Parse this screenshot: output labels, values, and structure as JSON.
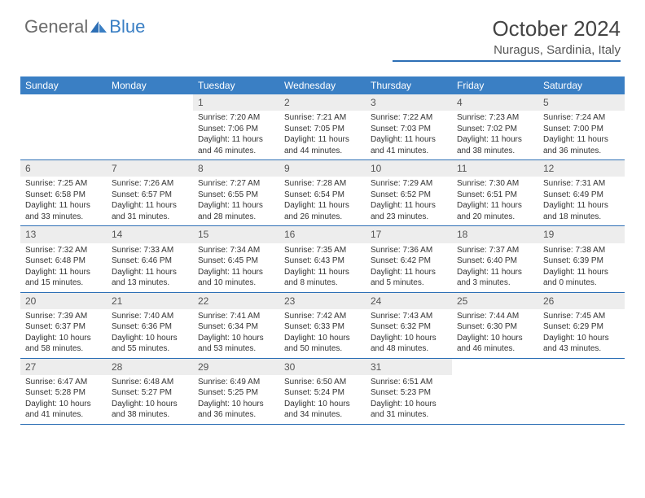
{
  "logo": {
    "general": "General",
    "blue": "Blue"
  },
  "title": "October 2024",
  "location": "Nuragus, Sardinia, Italy",
  "colors": {
    "header_bar": "#3a7fc4",
    "week_divider": "#2d6fb5",
    "daynum_bg": "#ededed",
    "logo_gray": "#6b6b6b",
    "logo_blue": "#3a7fc4"
  },
  "weekdays": [
    "Sunday",
    "Monday",
    "Tuesday",
    "Wednesday",
    "Thursday",
    "Friday",
    "Saturday"
  ],
  "weeks": [
    [
      null,
      null,
      {
        "n": "1",
        "sr": "7:20 AM",
        "ss": "7:06 PM",
        "dl": "11 hours and 46 minutes."
      },
      {
        "n": "2",
        "sr": "7:21 AM",
        "ss": "7:05 PM",
        "dl": "11 hours and 44 minutes."
      },
      {
        "n": "3",
        "sr": "7:22 AM",
        "ss": "7:03 PM",
        "dl": "11 hours and 41 minutes."
      },
      {
        "n": "4",
        "sr": "7:23 AM",
        "ss": "7:02 PM",
        "dl": "11 hours and 38 minutes."
      },
      {
        "n": "5",
        "sr": "7:24 AM",
        "ss": "7:00 PM",
        "dl": "11 hours and 36 minutes."
      }
    ],
    [
      {
        "n": "6",
        "sr": "7:25 AM",
        "ss": "6:58 PM",
        "dl": "11 hours and 33 minutes."
      },
      {
        "n": "7",
        "sr": "7:26 AM",
        "ss": "6:57 PM",
        "dl": "11 hours and 31 minutes."
      },
      {
        "n": "8",
        "sr": "7:27 AM",
        "ss": "6:55 PM",
        "dl": "11 hours and 28 minutes."
      },
      {
        "n": "9",
        "sr": "7:28 AM",
        "ss": "6:54 PM",
        "dl": "11 hours and 26 minutes."
      },
      {
        "n": "10",
        "sr": "7:29 AM",
        "ss": "6:52 PM",
        "dl": "11 hours and 23 minutes."
      },
      {
        "n": "11",
        "sr": "7:30 AM",
        "ss": "6:51 PM",
        "dl": "11 hours and 20 minutes."
      },
      {
        "n": "12",
        "sr": "7:31 AM",
        "ss": "6:49 PM",
        "dl": "11 hours and 18 minutes."
      }
    ],
    [
      {
        "n": "13",
        "sr": "7:32 AM",
        "ss": "6:48 PM",
        "dl": "11 hours and 15 minutes."
      },
      {
        "n": "14",
        "sr": "7:33 AM",
        "ss": "6:46 PM",
        "dl": "11 hours and 13 minutes."
      },
      {
        "n": "15",
        "sr": "7:34 AM",
        "ss": "6:45 PM",
        "dl": "11 hours and 10 minutes."
      },
      {
        "n": "16",
        "sr": "7:35 AM",
        "ss": "6:43 PM",
        "dl": "11 hours and 8 minutes."
      },
      {
        "n": "17",
        "sr": "7:36 AM",
        "ss": "6:42 PM",
        "dl": "11 hours and 5 minutes."
      },
      {
        "n": "18",
        "sr": "7:37 AM",
        "ss": "6:40 PM",
        "dl": "11 hours and 3 minutes."
      },
      {
        "n": "19",
        "sr": "7:38 AM",
        "ss": "6:39 PM",
        "dl": "11 hours and 0 minutes."
      }
    ],
    [
      {
        "n": "20",
        "sr": "7:39 AM",
        "ss": "6:37 PM",
        "dl": "10 hours and 58 minutes."
      },
      {
        "n": "21",
        "sr": "7:40 AM",
        "ss": "6:36 PM",
        "dl": "10 hours and 55 minutes."
      },
      {
        "n": "22",
        "sr": "7:41 AM",
        "ss": "6:34 PM",
        "dl": "10 hours and 53 minutes."
      },
      {
        "n": "23",
        "sr": "7:42 AM",
        "ss": "6:33 PM",
        "dl": "10 hours and 50 minutes."
      },
      {
        "n": "24",
        "sr": "7:43 AM",
        "ss": "6:32 PM",
        "dl": "10 hours and 48 minutes."
      },
      {
        "n": "25",
        "sr": "7:44 AM",
        "ss": "6:30 PM",
        "dl": "10 hours and 46 minutes."
      },
      {
        "n": "26",
        "sr": "7:45 AM",
        "ss": "6:29 PM",
        "dl": "10 hours and 43 minutes."
      }
    ],
    [
      {
        "n": "27",
        "sr": "6:47 AM",
        "ss": "5:28 PM",
        "dl": "10 hours and 41 minutes."
      },
      {
        "n": "28",
        "sr": "6:48 AM",
        "ss": "5:27 PM",
        "dl": "10 hours and 38 minutes."
      },
      {
        "n": "29",
        "sr": "6:49 AM",
        "ss": "5:25 PM",
        "dl": "10 hours and 36 minutes."
      },
      {
        "n": "30",
        "sr": "6:50 AM",
        "ss": "5:24 PM",
        "dl": "10 hours and 34 minutes."
      },
      {
        "n": "31",
        "sr": "6:51 AM",
        "ss": "5:23 PM",
        "dl": "10 hours and 31 minutes."
      },
      null,
      null
    ]
  ],
  "labels": {
    "sunrise": "Sunrise: ",
    "sunset": "Sunset: ",
    "daylight": "Daylight: "
  }
}
